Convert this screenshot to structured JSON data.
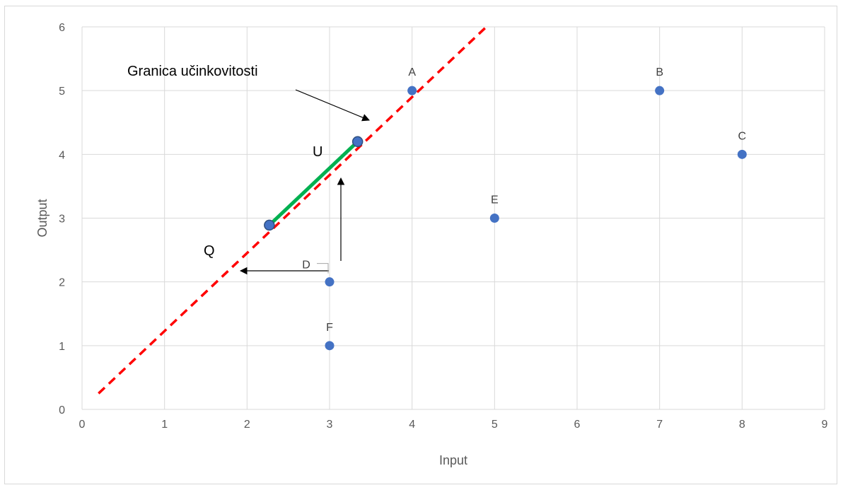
{
  "chart_data": {
    "type": "scatter",
    "xlabel": "Input",
    "ylabel": "Output",
    "xlim": [
      0,
      9
    ],
    "ylim": [
      0,
      6
    ],
    "x_ticks": [
      0,
      1,
      2,
      3,
      4,
      5,
      6,
      7,
      8,
      9
    ],
    "y_ticks": [
      0,
      1,
      2,
      3,
      4,
      5,
      6
    ],
    "grid": true,
    "points": [
      {
        "label": "A",
        "x": 4,
        "y": 5
      },
      {
        "label": "B",
        "x": 7,
        "y": 5
      },
      {
        "label": "C",
        "x": 8,
        "y": 4
      },
      {
        "label": "D",
        "x": 3,
        "y": 2
      },
      {
        "label": "E",
        "x": 5,
        "y": 3
      },
      {
        "label": "F",
        "x": 3,
        "y": 1
      }
    ],
    "frontier_line": {
      "from": [
        0.2,
        0.25
      ],
      "to": [
        4.9,
        6.0
      ],
      "color": "#ff0000",
      "style": "dashed"
    },
    "projection_segment": {
      "from": [
        2.27,
        2.89
      ],
      "to": [
        3.34,
        4.2
      ],
      "color": "#00b050"
    },
    "annotations": {
      "frontier_label": "Granica učinkovitosti",
      "segment_label": "U",
      "q_label": "Q"
    },
    "colors": {
      "marker": "#4472c4",
      "grid": "#d9d9d9",
      "frontier": "#ff0000",
      "segment": "#00b050"
    }
  }
}
